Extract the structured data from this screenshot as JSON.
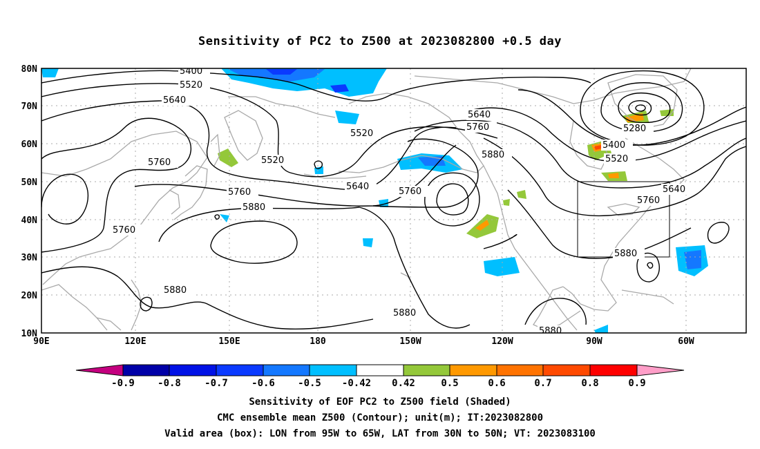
{
  "title": "Sensitivity of PC2 to Z500 at 2023082800 +0.5 day",
  "lat_labels": [
    "80N",
    "70N",
    "60N",
    "50N",
    "40N",
    "30N",
    "20N",
    "10N"
  ],
  "lon_labels": [
    "90E",
    "120E",
    "150E",
    "180",
    "150W",
    "120W",
    "90W",
    "60W"
  ],
  "contour_labels": [
    {
      "id": "c1",
      "text": "5400"
    },
    {
      "id": "c2",
      "text": "5520"
    },
    {
      "id": "c3",
      "text": "5640"
    },
    {
      "id": "c4",
      "text": "5760"
    },
    {
      "id": "c5",
      "text": "5760"
    },
    {
      "id": "c6",
      "text": "5760"
    },
    {
      "id": "c7",
      "text": "5880"
    },
    {
      "id": "c8",
      "text": "5880"
    },
    {
      "id": "c9",
      "text": "5520"
    },
    {
      "id": "c10",
      "text": "5520"
    },
    {
      "id": "c11",
      "text": "5640"
    },
    {
      "id": "c12",
      "text": "5760"
    },
    {
      "id": "c13",
      "text": "5640"
    },
    {
      "id": "c14",
      "text": "5760"
    },
    {
      "id": "c15",
      "text": "5880"
    },
    {
      "id": "c16",
      "text": "5880"
    },
    {
      "id": "c17",
      "text": "5280"
    },
    {
      "id": "c18",
      "text": "5400"
    },
    {
      "id": "c19",
      "text": "5520"
    },
    {
      "id": "c20",
      "text": "5640"
    },
    {
      "id": "c21",
      "text": "5760"
    },
    {
      "id": "c22",
      "text": "5880"
    },
    {
      "id": "c23",
      "text": "5880"
    }
  ],
  "colorbar": {
    "labels": [
      "-0.9",
      "-0.8",
      "-0.7",
      "-0.6",
      "-0.5",
      "-0.42",
      "0.42",
      "0.5",
      "0.6",
      "0.7",
      "0.8",
      "0.9"
    ],
    "colors": {
      "lt_-0.9": "#c4007f",
      "-0.9": "#0000a8",
      "-0.8": "#0012e6",
      "-0.7": "#0a3aff",
      "-0.6": "#1478ff",
      "-0.5": "#00bfff",
      "-0.42_0.42": "#ffffff",
      "0.42": "#94c83a",
      "0.5": "#ff9900",
      "0.6": "#ff7300",
      "0.7": "#ff4a00",
      "0.8": "#ff0000",
      "gt_0.9": "#ff9ec8"
    }
  },
  "caption": {
    "line1": "Sensitivity of EOF PC2 to Z500 field (Shaded)",
    "line2": "CMC ensemble mean Z500 (Contour); unit(m); IT:2023082800",
    "line3": "Valid area (box): LON from 95W to 65W, LAT from 30N to 50N; VT: 2023083100"
  }
}
